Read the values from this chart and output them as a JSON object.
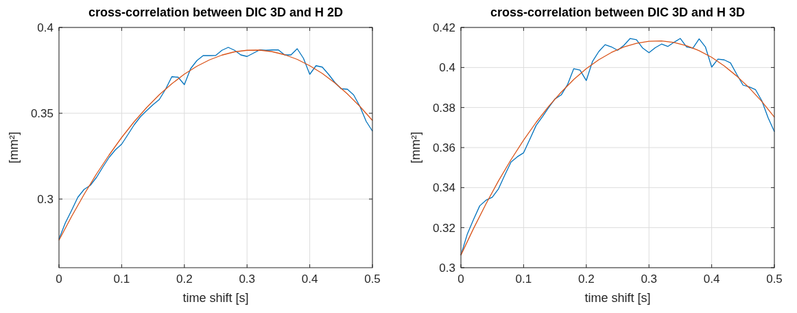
{
  "chart_data": [
    {
      "type": "line",
      "title": "cross-correlation between DIC 3D and H 2D",
      "xlabel": "time shift [s]",
      "ylabel": "[mm²]",
      "xlim": [
        0,
        0.5
      ],
      "xticks": [
        0,
        0.1,
        0.2,
        0.3,
        0.4,
        0.5
      ],
      "ylim": [
        0.26,
        0.4
      ],
      "yticks": [
        0.3,
        0.35,
        0.4
      ],
      "grid": true,
      "line_style": "solid",
      "series": [
        {
          "color": "#0072bd",
          "x": [
            0,
            0.01,
            0.02,
            0.03,
            0.04,
            0.05,
            0.06,
            0.07,
            0.08,
            0.09,
            0.1,
            0.11,
            0.12,
            0.13,
            0.14,
            0.15,
            0.16,
            0.17,
            0.18,
            0.19,
            0.2,
            0.21,
            0.22,
            0.23,
            0.24,
            0.25,
            0.26,
            0.27,
            0.28,
            0.29,
            0.3,
            0.31,
            0.32,
            0.33,
            0.34,
            0.35,
            0.36,
            0.37,
            0.38,
            0.39,
            0.4,
            0.41,
            0.42,
            0.43,
            0.44,
            0.45,
            0.46,
            0.47,
            0.48,
            0.49,
            0.5
          ],
          "values": [
            0.2767,
            0.286,
            0.2933,
            0.301,
            0.3056,
            0.308,
            0.3127,
            0.3187,
            0.3243,
            0.3287,
            0.332,
            0.3376,
            0.3433,
            0.348,
            0.3516,
            0.355,
            0.358,
            0.364,
            0.3713,
            0.371,
            0.3667,
            0.376,
            0.3807,
            0.3836,
            0.3836,
            0.3837,
            0.3867,
            0.3884,
            0.3867,
            0.384,
            0.3831,
            0.385,
            0.3869,
            0.3867,
            0.3869,
            0.3869,
            0.384,
            0.384,
            0.3876,
            0.382,
            0.3727,
            0.3777,
            0.3769,
            0.3727,
            0.368,
            0.3643,
            0.364,
            0.3607,
            0.354,
            0.3453,
            0.3396
          ]
        },
        {
          "color": "#d95319",
          "x": [
            0,
            0.02,
            0.04,
            0.06,
            0.08,
            0.1,
            0.12,
            0.14,
            0.16,
            0.18,
            0.2,
            0.22,
            0.24,
            0.26,
            0.28,
            0.3,
            0.32,
            0.34,
            0.36,
            0.38,
            0.4,
            0.42,
            0.44,
            0.46,
            0.48,
            0.5
          ],
          "values": [
            0.276,
            0.2898,
            0.3027,
            0.3147,
            0.3257,
            0.3359,
            0.3451,
            0.3534,
            0.3608,
            0.3672,
            0.3728,
            0.3774,
            0.3811,
            0.3839,
            0.3858,
            0.3867,
            0.3868,
            0.3859,
            0.3841,
            0.3814,
            0.3777,
            0.3732,
            0.3677,
            0.3613,
            0.354,
            0.3458
          ]
        }
      ]
    },
    {
      "type": "line",
      "title": "cross-correlation between DIC 3D and H 3D",
      "xlabel": "time shift [s]",
      "ylabel": "[mm²]",
      "xlim": [
        0,
        0.5
      ],
      "xticks": [
        0,
        0.1,
        0.2,
        0.3,
        0.4,
        0.5
      ],
      "ylim": [
        0.3,
        0.42
      ],
      "yticks": [
        0.3,
        0.32,
        0.34,
        0.36,
        0.38,
        0.4,
        0.42
      ],
      "grid": true,
      "line_style": "solid",
      "series": [
        {
          "color": "#0072bd",
          "x": [
            0,
            0.01,
            0.02,
            0.03,
            0.04,
            0.05,
            0.06,
            0.07,
            0.08,
            0.09,
            0.1,
            0.11,
            0.12,
            0.13,
            0.14,
            0.15,
            0.16,
            0.17,
            0.18,
            0.19,
            0.2,
            0.21,
            0.22,
            0.23,
            0.24,
            0.25,
            0.26,
            0.27,
            0.28,
            0.29,
            0.3,
            0.31,
            0.32,
            0.33,
            0.34,
            0.35,
            0.36,
            0.37,
            0.38,
            0.39,
            0.4,
            0.41,
            0.42,
            0.43,
            0.44,
            0.45,
            0.46,
            0.47,
            0.48,
            0.49,
            0.5
          ],
          "values": [
            0.3063,
            0.3166,
            0.324,
            0.3309,
            0.3337,
            0.3352,
            0.3394,
            0.3463,
            0.3528,
            0.3554,
            0.3574,
            0.3642,
            0.3711,
            0.3754,
            0.38,
            0.3843,
            0.3863,
            0.3914,
            0.3994,
            0.3987,
            0.3935,
            0.4031,
            0.408,
            0.4114,
            0.4103,
            0.4086,
            0.4111,
            0.4145,
            0.4139,
            0.4097,
            0.4074,
            0.4099,
            0.4117,
            0.4105,
            0.4126,
            0.4145,
            0.4103,
            0.4097,
            0.4143,
            0.4103,
            0.4002,
            0.4042,
            0.4038,
            0.4023,
            0.3966,
            0.3912,
            0.3903,
            0.3889,
            0.3834,
            0.3749,
            0.368
          ]
        },
        {
          "color": "#d95319",
          "x": [
            0,
            0.02,
            0.04,
            0.06,
            0.08,
            0.1,
            0.12,
            0.14,
            0.16,
            0.18,
            0.2,
            0.22,
            0.24,
            0.26,
            0.28,
            0.3,
            0.32,
            0.34,
            0.36,
            0.38,
            0.4,
            0.42,
            0.44,
            0.46,
            0.48,
            0.5
          ],
          "values": [
            0.3063,
            0.3195,
            0.3319,
            0.3434,
            0.354,
            0.3637,
            0.3726,
            0.3806,
            0.3877,
            0.394,
            0.3994,
            0.4039,
            0.4075,
            0.4103,
            0.4121,
            0.4131,
            0.4133,
            0.4125,
            0.4109,
            0.4084,
            0.4051,
            0.4008,
            0.3957,
            0.3898,
            0.383,
            0.3752
          ]
        }
      ]
    }
  ]
}
